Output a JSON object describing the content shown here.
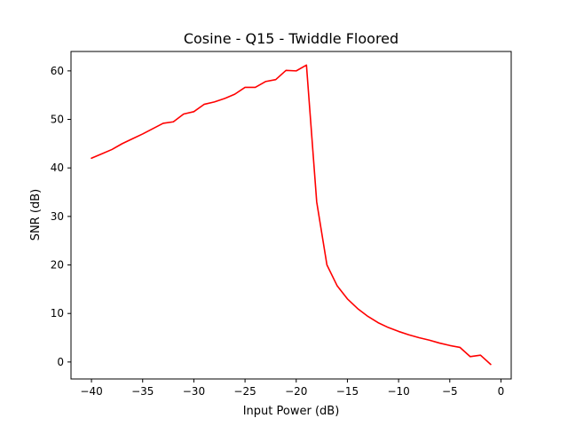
{
  "chart_data": {
    "type": "line",
    "title": "Cosine - Q15 - Twiddle Floored",
    "xlabel": "Input Power (dB)",
    "ylabel": "SNR (dB)",
    "xlim": [
      -42,
      1
    ],
    "ylim": [
      -3.5,
      64
    ],
    "xticks": [
      -40,
      -35,
      -30,
      -25,
      -20,
      -15,
      -10,
      -5,
      0
    ],
    "xtick_labels": [
      "−40",
      "−35",
      "−30",
      "−25",
      "−20",
      "−15",
      "−10",
      "−5",
      "0"
    ],
    "yticks": [
      0,
      10,
      20,
      30,
      40,
      50,
      60
    ],
    "ytick_labels": [
      "0",
      "10",
      "20",
      "30",
      "40",
      "50",
      "60"
    ],
    "grid": false,
    "series": [
      {
        "color": "#ff0000",
        "x": [
          -40,
          -39,
          -38,
          -37,
          -36,
          -35,
          -34,
          -33,
          -32,
          -31,
          -30,
          -29,
          -28,
          -27,
          -26,
          -25,
          -24,
          -23,
          -22,
          -21,
          -20,
          -19,
          -18,
          -17,
          -16,
          -15,
          -14,
          -13,
          -12,
          -11,
          -10,
          -9,
          -8,
          -7,
          -6,
          -5,
          -4,
          -3,
          -2,
          -1
        ],
        "values": [
          42.0,
          42.9,
          43.8,
          45.0,
          46.0,
          47.0,
          48.1,
          49.2,
          49.5,
          51.1,
          51.6,
          53.1,
          53.6,
          54.3,
          55.2,
          56.6,
          56.6,
          57.8,
          58.2,
          60.1,
          60.0,
          61.2,
          33.0,
          20.0,
          15.7,
          13.0,
          11.0,
          9.4,
          8.1,
          7.1,
          6.3,
          5.6,
          5.0,
          4.5,
          3.9,
          3.4,
          3.0,
          1.1,
          1.4,
          -0.5
        ]
      }
    ]
  }
}
